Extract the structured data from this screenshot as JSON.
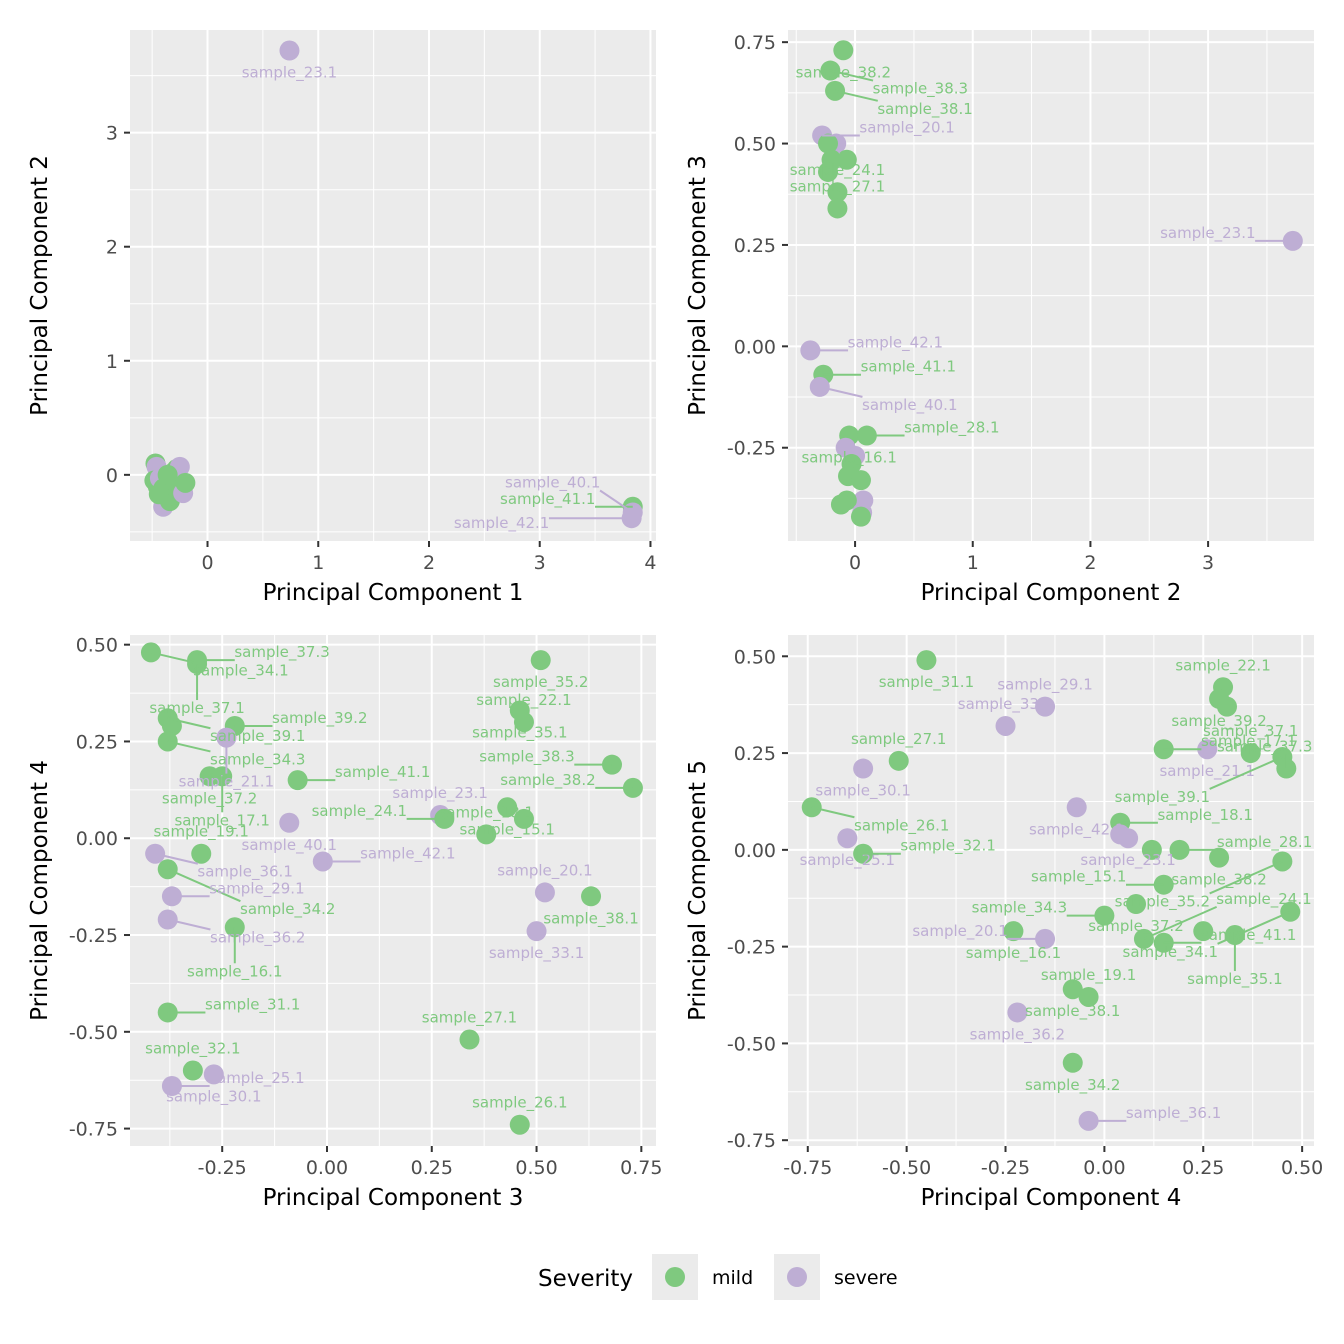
{
  "colors": {
    "mild": "#7fc97f",
    "severe": "#beaed4"
  },
  "legend": {
    "title": "Severity",
    "items": [
      {
        "key": "mild",
        "label": "mild"
      },
      {
        "key": "severe",
        "label": "severe"
      }
    ]
  },
  "chart_data": [
    {
      "type": "scatter",
      "xlabel": "Principal Component 1",
      "ylabel": "Principal Component 2",
      "xlim": [
        -0.7,
        4.05
      ],
      "ylim": [
        -0.58,
        3.9
      ],
      "xticks": [
        0,
        1,
        2,
        3,
        4
      ],
      "yticks": [
        0,
        1,
        2,
        3
      ],
      "grid": true,
      "points": [
        {
          "x": -0.47,
          "y": 0.1,
          "g": "mild"
        },
        {
          "x": -0.46,
          "y": 0.07,
          "g": "severe"
        },
        {
          "x": -0.48,
          "y": -0.05,
          "g": "mild"
        },
        {
          "x": -0.45,
          "y": -0.1,
          "g": "mild"
        },
        {
          "x": -0.43,
          "y": -0.03,
          "g": "severe"
        },
        {
          "x": -0.4,
          "y": -0.12,
          "g": "mild"
        },
        {
          "x": -0.38,
          "y": -0.2,
          "g": "mild"
        },
        {
          "x": -0.4,
          "y": -0.28,
          "g": "severe"
        },
        {
          "x": -0.37,
          "y": -0.15,
          "g": "severe"
        },
        {
          "x": -0.35,
          "y": -0.05,
          "g": "mild"
        },
        {
          "x": -0.34,
          "y": -0.23,
          "g": "mild"
        },
        {
          "x": -0.32,
          "y": -0.18,
          "g": "mild"
        },
        {
          "x": -0.31,
          "y": 0.02,
          "g": "mild"
        },
        {
          "x": -0.3,
          "y": -0.1,
          "g": "mild"
        },
        {
          "x": -0.28,
          "y": 0.05,
          "g": "mild"
        },
        {
          "x": -0.26,
          "y": -0.13,
          "g": "mild"
        },
        {
          "x": -0.25,
          "y": 0.07,
          "g": "severe"
        },
        {
          "x": -0.22,
          "y": -0.16,
          "g": "severe"
        },
        {
          "x": -0.2,
          "y": -0.07,
          "g": "mild"
        },
        {
          "x": -0.44,
          "y": -0.17,
          "g": "mild"
        },
        {
          "x": -0.36,
          "y": 0.0,
          "g": "mild"
        },
        {
          "x": 0.74,
          "y": 3.72,
          "g": "severe",
          "label": "sample_23.1"
        },
        {
          "x": 3.84,
          "y": -0.28,
          "g": "mild",
          "label": "sample_41.1"
        },
        {
          "x": 3.83,
          "y": -0.38,
          "g": "severe",
          "label": "sample_42.1"
        },
        {
          "x": 3.84,
          "y": -0.33,
          "g": "severe",
          "label": "sample_40.1"
        }
      ]
    },
    {
      "type": "scatter",
      "xlabel": "Principal Component 2",
      "ylabel": "Principal Component 3",
      "xlim": [
        -0.57,
        3.9
      ],
      "ylim": [
        -0.48,
        0.78
      ],
      "xticks": [
        0,
        1,
        2,
        3
      ],
      "yticks": [
        -0.25,
        0.0,
        0.25,
        0.5,
        0.75
      ],
      "grid": true,
      "points": [
        {
          "x": -0.1,
          "y": 0.73,
          "g": "mild",
          "label": "sample_38.2"
        },
        {
          "x": -0.21,
          "y": 0.68,
          "g": "mild",
          "label": "sample_38.3"
        },
        {
          "x": -0.17,
          "y": 0.63,
          "g": "mild",
          "label": "sample_38.1"
        },
        {
          "x": -0.28,
          "y": 0.52,
          "g": "severe",
          "label": "sample_20.1"
        },
        {
          "x": -0.16,
          "y": 0.5,
          "g": "severe"
        },
        {
          "x": -0.23,
          "y": 0.5,
          "g": "mild"
        },
        {
          "x": -0.2,
          "y": 0.46,
          "g": "mild"
        },
        {
          "x": -0.07,
          "y": 0.46,
          "g": "mild"
        },
        {
          "x": -0.23,
          "y": 0.43,
          "g": "mild"
        },
        {
          "x": -0.15,
          "y": 0.38,
          "g": "mild",
          "label": "sample_24.1"
        },
        {
          "x": -0.15,
          "y": 0.34,
          "g": "mild",
          "label": "sample_27.1"
        },
        {
          "x": 3.72,
          "y": 0.26,
          "g": "severe",
          "label": "sample_23.1"
        },
        {
          "x": -0.38,
          "y": -0.01,
          "g": "severe",
          "label": "sample_42.1"
        },
        {
          "x": -0.27,
          "y": -0.07,
          "g": "mild",
          "label": "sample_41.1"
        },
        {
          "x": -0.3,
          "y": -0.1,
          "g": "severe",
          "label": "sample_40.1"
        },
        {
          "x": -0.05,
          "y": -0.22,
          "g": "mild",
          "label": "sample_16.1"
        },
        {
          "x": 0.1,
          "y": -0.22,
          "g": "mild",
          "label": "sample_28.1"
        },
        {
          "x": -0.08,
          "y": -0.25,
          "g": "severe"
        },
        {
          "x": 0.0,
          "y": -0.27,
          "g": "severe"
        },
        {
          "x": -0.03,
          "y": -0.29,
          "g": "mild"
        },
        {
          "x": -0.06,
          "y": -0.32,
          "g": "mild"
        },
        {
          "x": 0.05,
          "y": -0.33,
          "g": "mild"
        },
        {
          "x": 0.07,
          "y": -0.38,
          "g": "severe"
        },
        {
          "x": -0.07,
          "y": -0.38,
          "g": "mild"
        },
        {
          "x": -0.12,
          "y": -0.39,
          "g": "mild"
        },
        {
          "x": 0.06,
          "y": -0.41,
          "g": "severe"
        },
        {
          "x": 0.05,
          "y": -0.42,
          "g": "mild"
        }
      ]
    },
    {
      "type": "scatter",
      "xlabel": "Principal Component 3",
      "ylabel": "Principal Component 4",
      "xlim": [
        -0.47,
        0.785
      ],
      "ylim": [
        -0.795,
        0.525
      ],
      "xticks": [
        -0.25,
        0.0,
        0.25,
        0.5,
        0.75
      ],
      "yticks": [
        -0.75,
        -0.5,
        -0.25,
        0.0,
        0.25,
        0.5
      ],
      "grid": true,
      "points": [
        {
          "x": -0.42,
          "y": 0.48,
          "g": "mild",
          "label": "sample_34.1"
        },
        {
          "x": -0.31,
          "y": 0.46,
          "g": "mild",
          "label": "sample_37.3"
        },
        {
          "x": -0.31,
          "y": 0.45,
          "g": "mild",
          "label": "sample_37.1"
        },
        {
          "x": -0.38,
          "y": 0.31,
          "g": "mild",
          "label": "sample_39.1"
        },
        {
          "x": -0.37,
          "y": 0.29,
          "g": "mild"
        },
        {
          "x": -0.22,
          "y": 0.29,
          "g": "mild",
          "label": "sample_39.2"
        },
        {
          "x": -0.38,
          "y": 0.25,
          "g": "mild",
          "label": "sample_34.3"
        },
        {
          "x": -0.24,
          "y": 0.26,
          "g": "severe",
          "label": "sample_21.1"
        },
        {
          "x": -0.28,
          "y": 0.16,
          "g": "mild",
          "label": "sample_37.2"
        },
        {
          "x": -0.25,
          "y": 0.16,
          "g": "mild",
          "label": "sample_17.1"
        },
        {
          "x": -0.07,
          "y": 0.15,
          "g": "mild",
          "label": "sample_41.1"
        },
        {
          "x": -0.09,
          "y": 0.04,
          "g": "severe",
          "label": "sample_40.1"
        },
        {
          "x": 0.51,
          "y": 0.46,
          "g": "mild",
          "label": "sample_35.2"
        },
        {
          "x": 0.46,
          "y": 0.33,
          "g": "mild",
          "label": "sample_35.1"
        },
        {
          "x": 0.47,
          "y": 0.3,
          "g": "mild",
          "label": "sample_22.1"
        },
        {
          "x": 0.68,
          "y": 0.19,
          "g": "mild",
          "label": "sample_38.3"
        },
        {
          "x": 0.73,
          "y": 0.13,
          "g": "mild",
          "label": "sample_38.2"
        },
        {
          "x": 0.43,
          "y": 0.08,
          "g": "mild",
          "label": "sample_15.1"
        },
        {
          "x": 0.47,
          "y": 0.05,
          "g": "mild"
        },
        {
          "x": 0.27,
          "y": 0.06,
          "g": "severe",
          "label": "sample_23.1"
        },
        {
          "x": 0.38,
          "y": 0.01,
          "g": "mild",
          "label": "sample_18.1"
        },
        {
          "x": 0.28,
          "y": 0.05,
          "g": "mild",
          "label": "sample_24.1"
        },
        {
          "x": -0.41,
          "y": -0.04,
          "g": "severe",
          "label": "sample_36.1"
        },
        {
          "x": -0.38,
          "y": -0.08,
          "g": "mild",
          "label": "sample_34.2"
        },
        {
          "x": -0.3,
          "y": -0.04,
          "g": "mild",
          "label": "sample_19.1"
        },
        {
          "x": -0.01,
          "y": -0.06,
          "g": "severe",
          "label": "sample_42.1"
        },
        {
          "x": -0.37,
          "y": -0.15,
          "g": "severe",
          "label": "sample_29.1"
        },
        {
          "x": -0.38,
          "y": -0.21,
          "g": "severe",
          "label": "sample_36.2"
        },
        {
          "x": -0.22,
          "y": -0.23,
          "g": "mild",
          "label": "sample_16.1"
        },
        {
          "x": 0.52,
          "y": -0.14,
          "g": "severe",
          "label": "sample_20.1"
        },
        {
          "x": 0.63,
          "y": -0.15,
          "g": "mild",
          "label": "sample_38.1"
        },
        {
          "x": 0.5,
          "y": -0.24,
          "g": "severe",
          "label": "sample_33.1"
        },
        {
          "x": -0.38,
          "y": -0.45,
          "g": "mild",
          "label": "sample_31.1"
        },
        {
          "x": -0.32,
          "y": -0.6,
          "g": "mild",
          "label": "sample_32.1"
        },
        {
          "x": -0.27,
          "y": -0.61,
          "g": "severe",
          "label": "sample_30.1"
        },
        {
          "x": -0.37,
          "y": -0.64,
          "g": "severe",
          "label": "sample_25.1"
        },
        {
          "x": 0.34,
          "y": -0.52,
          "g": "mild",
          "label": "sample_27.1"
        },
        {
          "x": 0.46,
          "y": -0.74,
          "g": "mild",
          "label": "sample_26.1"
        }
      ]
    },
    {
      "type": "scatter",
      "xlabel": "Principal Component 4",
      "ylabel": "Principal Component 5",
      "xlim": [
        -0.8,
        0.53
      ],
      "ylim": [
        -0.765,
        0.555
      ],
      "xticks": [
        -0.75,
        -0.5,
        -0.25,
        0.0,
        0.25,
        0.5
      ],
      "yticks": [
        -0.75,
        -0.5,
        -0.25,
        0.0,
        0.25,
        0.5
      ],
      "grid": true,
      "points": [
        {
          "x": -0.45,
          "y": 0.49,
          "g": "mild",
          "label": "sample_31.1"
        },
        {
          "x": -0.15,
          "y": 0.37,
          "g": "severe",
          "label": "sample_29.1"
        },
        {
          "x": -0.25,
          "y": 0.32,
          "g": "severe",
          "label": "sample_33.1"
        },
        {
          "x": 0.3,
          "y": 0.42,
          "g": "mild",
          "label": "sample_22.1"
        },
        {
          "x": 0.29,
          "y": 0.39,
          "g": "mild",
          "label": "sample_39.2"
        },
        {
          "x": 0.31,
          "y": 0.37,
          "g": "mild"
        },
        {
          "x": 0.26,
          "y": 0.26,
          "g": "severe",
          "label": "sample_21.1"
        },
        {
          "x": 0.15,
          "y": 0.26,
          "g": "mild",
          "label": "sample_17.1"
        },
        {
          "x": 0.45,
          "y": 0.24,
          "g": "mild",
          "label": "sample_39.1"
        },
        {
          "x": 0.46,
          "y": 0.21,
          "g": "mild",
          "label": "sample_37.3"
        },
        {
          "x": -0.52,
          "y": 0.23,
          "g": "mild",
          "label": "sample_27.1"
        },
        {
          "x": -0.61,
          "y": 0.21,
          "g": "severe",
          "label": "sample_30.1"
        },
        {
          "x": -0.74,
          "y": 0.11,
          "g": "mild",
          "label": "sample_26.1"
        },
        {
          "x": -0.07,
          "y": 0.11,
          "g": "severe",
          "label": "sample_42.1"
        },
        {
          "x": 0.04,
          "y": 0.07,
          "g": "mild",
          "label": "sample_18.1"
        },
        {
          "x": -0.65,
          "y": 0.03,
          "g": "severe",
          "label": "sample_25.1"
        },
        {
          "x": -0.61,
          "y": -0.01,
          "g": "mild",
          "label": "sample_32.1"
        },
        {
          "x": 0.04,
          "y": 0.04,
          "g": "severe"
        },
        {
          "x": 0.06,
          "y": 0.03,
          "g": "severe",
          "label": "sample_23.1"
        },
        {
          "x": 0.12,
          "y": 0.0,
          "g": "mild"
        },
        {
          "x": 0.19,
          "y": 0.0,
          "g": "mild",
          "label": "sample_28.1"
        },
        {
          "x": 0.29,
          "y": -0.02,
          "g": "mild",
          "label": "sample_38.2"
        },
        {
          "x": 0.45,
          "y": -0.03,
          "g": "mild",
          "label": "sample_35.2"
        },
        {
          "x": 0.15,
          "y": -0.09,
          "g": "mild",
          "label": "sample_15.1"
        },
        {
          "x": 0.08,
          "y": -0.14,
          "g": "mild",
          "label": "sample_37.2"
        },
        {
          "x": 0.0,
          "y": -0.17,
          "g": "mild",
          "label": "sample_34.3"
        },
        {
          "x": 0.47,
          "y": -0.16,
          "g": "mild",
          "label": "sample_34.1"
        },
        {
          "x": 0.25,
          "y": -0.21,
          "g": "mild"
        },
        {
          "x": 0.33,
          "y": -0.22,
          "g": "mild",
          "label": "sample_35.1"
        },
        {
          "x": -0.23,
          "y": -0.21,
          "g": "mild",
          "label": "sample_16.1"
        },
        {
          "x": -0.15,
          "y": -0.23,
          "g": "severe",
          "label": "sample_20.1"
        },
        {
          "x": 0.15,
          "y": -0.24,
          "g": "mild",
          "label": "sample_41.1"
        },
        {
          "x": 0.1,
          "y": -0.23,
          "g": "mild",
          "label": "sample_24.1"
        },
        {
          "x": -0.08,
          "y": -0.36,
          "g": "mild",
          "label": "sample_38.1"
        },
        {
          "x": -0.04,
          "y": -0.38,
          "g": "mild",
          "label": "sample_19.1"
        },
        {
          "x": -0.22,
          "y": -0.42,
          "g": "severe",
          "label": "sample_36.2"
        },
        {
          "x": -0.08,
          "y": -0.55,
          "g": "mild",
          "label": "sample_34.2"
        },
        {
          "x": -0.04,
          "y": -0.7,
          "g": "severe",
          "label": "sample_36.1"
        },
        {
          "x": 0.37,
          "y": 0.25,
          "g": "mild",
          "label": "sample_37.1"
        }
      ]
    }
  ]
}
